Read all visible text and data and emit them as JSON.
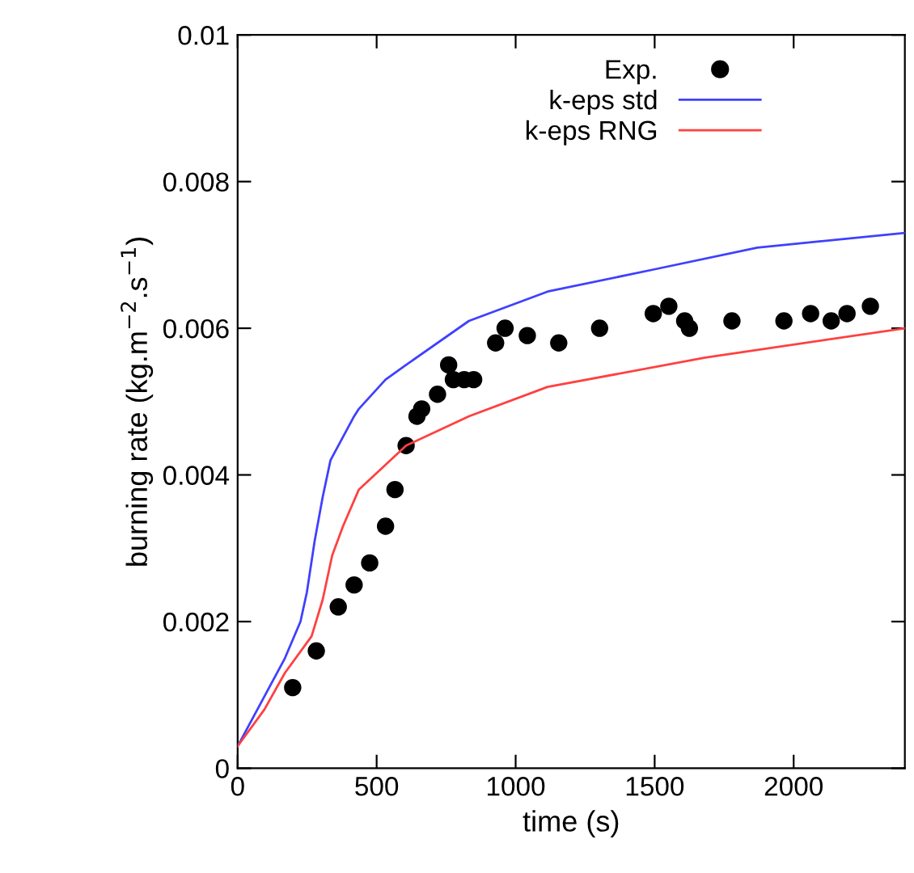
{
  "chart_data": {
    "type": "line",
    "xlabel": "time (s)",
    "ylabel": "burning rate (kg.m$^{−2}$.s$^{−1}$)",
    "xlim": [
      0,
      2400
    ],
    "ylim": [
      0,
      0.01
    ],
    "xticks": [
      0,
      500,
      1000,
      1500,
      2000
    ],
    "yticks": [
      0,
      0.002,
      0.004,
      0.006,
      0.008,
      0.01
    ],
    "grid": false,
    "legend": "top right",
    "series": [
      {
        "name": "Exp.",
        "type": "scatter",
        "marker": "circle",
        "color": "#000000",
        "x": [
          198,
          283,
          362,
          419,
          475,
          532,
          566,
          606,
          645,
          662,
          719,
          759,
          776,
          815,
          849,
          928,
          962,
          1042,
          1155,
          1302,
          1495,
          1551,
          1608,
          1625,
          1778,
          1965,
          2061,
          2135,
          2192,
          2276
        ],
        "values": [
          0.0011,
          0.0016,
          0.0022,
          0.0025,
          0.0028,
          0.0033,
          0.0038,
          0.0044,
          0.0048,
          0.0049,
          0.0051,
          0.0055,
          0.0053,
          0.0053,
          0.0053,
          0.0058,
          0.006,
          0.0059,
          0.0058,
          0.006,
          0.0062,
          0.0063,
          0.0061,
          0.006,
          0.0061,
          0.0061,
          0.0062,
          0.0061,
          0.0062,
          0.0063
        ]
      },
      {
        "name": "k-eps std",
        "color": "#4040ff",
        "x": [
          0,
          170,
          226,
          249,
          277,
          306,
          334,
          419,
          436,
          532,
          606,
          832,
          1115,
          1495,
          1869,
          2400
        ],
        "values": [
          0.0003,
          0.0015,
          0.002,
          0.0024,
          0.0031,
          0.0037,
          0.0042,
          0.0048,
          0.0049,
          0.0053,
          0.0055,
          0.0061,
          0.0065,
          0.0068,
          0.0071,
          0.0073
        ]
      },
      {
        "name": "k-eps RNG",
        "color": "#ff4040",
        "x": [
          0,
          96,
          170,
          266,
          306,
          340,
          379,
          436,
          606,
          832,
          1115,
          1682,
          2400
        ],
        "values": [
          0.0003,
          0.0008,
          0.0013,
          0.0018,
          0.0023,
          0.0029,
          0.0033,
          0.0038,
          0.0044,
          0.0048,
          0.0052,
          0.0056,
          0.006
        ]
      }
    ]
  }
}
